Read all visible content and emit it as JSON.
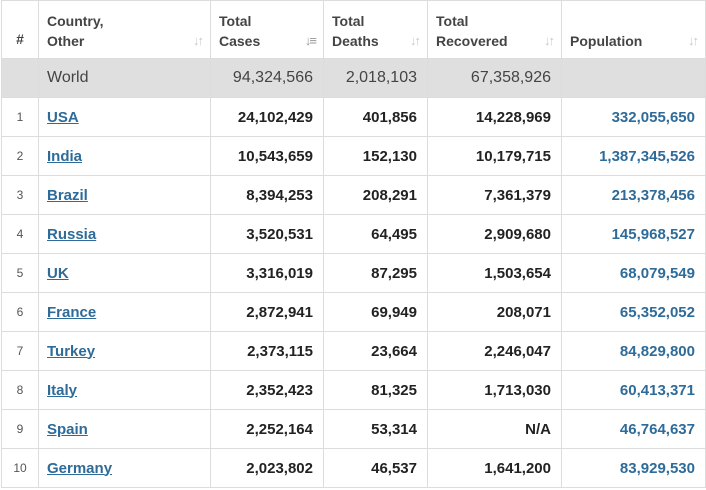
{
  "headers": {
    "rank": "#",
    "country": "Country,\nOther",
    "total_cases": "Total\nCases",
    "total_deaths": "Total\nDeaths",
    "total_recovered": "Total\nRecovered",
    "population": "Population"
  },
  "world": {
    "name": "World",
    "total_cases": "94,324,566",
    "total_deaths": "2,018,103",
    "total_recovered": "67,358,926",
    "population": ""
  },
  "rows": [
    {
      "rank": "1",
      "country": "USA",
      "total_cases": "24,102,429",
      "total_deaths": "401,856",
      "total_recovered": "14,228,969",
      "population": "332,055,650"
    },
    {
      "rank": "2",
      "country": "India",
      "total_cases": "10,543,659",
      "total_deaths": "152,130",
      "total_recovered": "10,179,715",
      "population": "1,387,345,526"
    },
    {
      "rank": "3",
      "country": "Brazil",
      "total_cases": "8,394,253",
      "total_deaths": "208,291",
      "total_recovered": "7,361,379",
      "population": "213,378,456"
    },
    {
      "rank": "4",
      "country": "Russia",
      "total_cases": "3,520,531",
      "total_deaths": "64,495",
      "total_recovered": "2,909,680",
      "population": "145,968,527"
    },
    {
      "rank": "5",
      "country": "UK",
      "total_cases": "3,316,019",
      "total_deaths": "87,295",
      "total_recovered": "1,503,654",
      "population": "68,079,549"
    },
    {
      "rank": "6",
      "country": "France",
      "total_cases": "2,872,941",
      "total_deaths": "69,949",
      "total_recovered": "208,071",
      "population": "65,352,052"
    },
    {
      "rank": "7",
      "country": "Turkey",
      "total_cases": "2,373,115",
      "total_deaths": "23,664",
      "total_recovered": "2,246,047",
      "population": "84,829,800"
    },
    {
      "rank": "8",
      "country": "Italy",
      "total_cases": "2,352,423",
      "total_deaths": "81,325",
      "total_recovered": "1,713,030",
      "population": "60,413,371"
    },
    {
      "rank": "9",
      "country": "Spain",
      "total_cases": "2,252,164",
      "total_deaths": "53,314",
      "total_recovered": "N/A",
      "population": "46,764,637"
    },
    {
      "rank": "10",
      "country": "Germany",
      "total_cases": "2,023,802",
      "total_deaths": "46,537",
      "total_recovered": "1,641,200",
      "population": "83,929,530"
    }
  ],
  "icons": {
    "sort_default": "sort-arrows-icon",
    "sort_active": "sort-desc-icon"
  },
  "colors": {
    "link": "#2e6b99",
    "world_row_bg": "#dfdfdf",
    "border": "#dcdcdc"
  }
}
